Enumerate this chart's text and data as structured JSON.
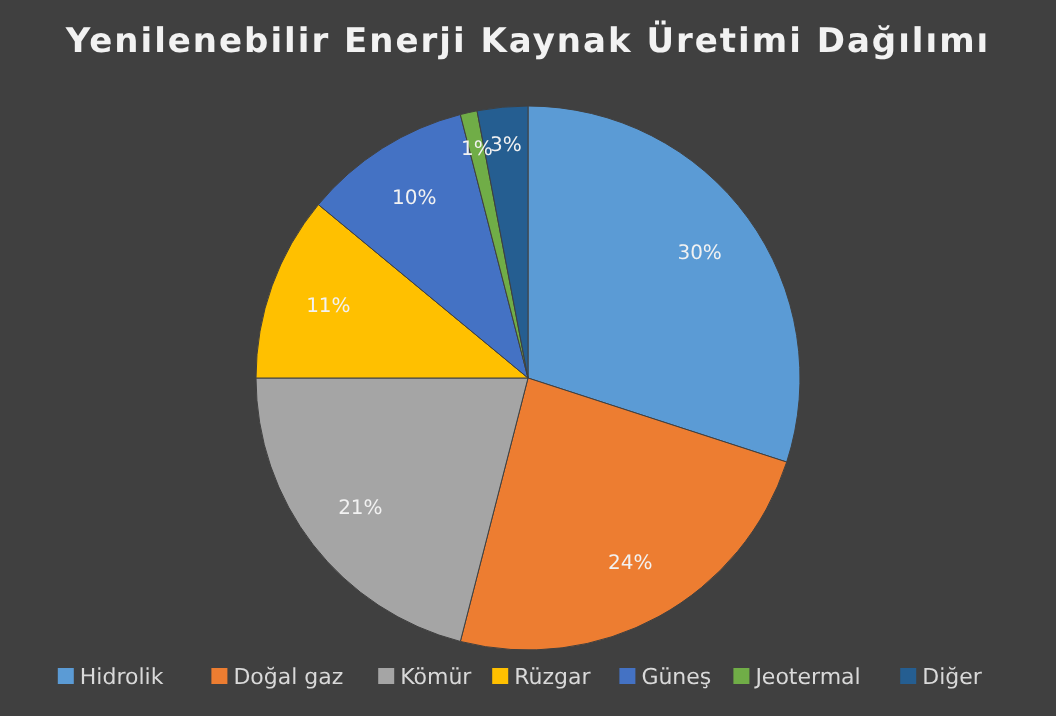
{
  "chart_data": {
    "type": "pie",
    "title": "Yenilenebilir Enerji Kaynak Üretimi Dağılımı",
    "categories": [
      "Hidrolik",
      "Doğal gaz",
      "Kömür",
      "Rüzgar",
      "Güneş",
      "Jeotermal",
      "Diğer"
    ],
    "values": [
      30,
      24,
      21,
      11,
      10,
      1,
      3
    ],
    "colors": [
      "#5b9bd5",
      "#ed7d31",
      "#a5a5a5",
      "#ffc000",
      "#4472c4",
      "#70ad47",
      "#255e91"
    ],
    "value_labels": [
      "30%",
      "24%",
      "21%",
      "11%",
      "10%",
      "1%",
      "3%"
    ],
    "legend": "bottom"
  }
}
